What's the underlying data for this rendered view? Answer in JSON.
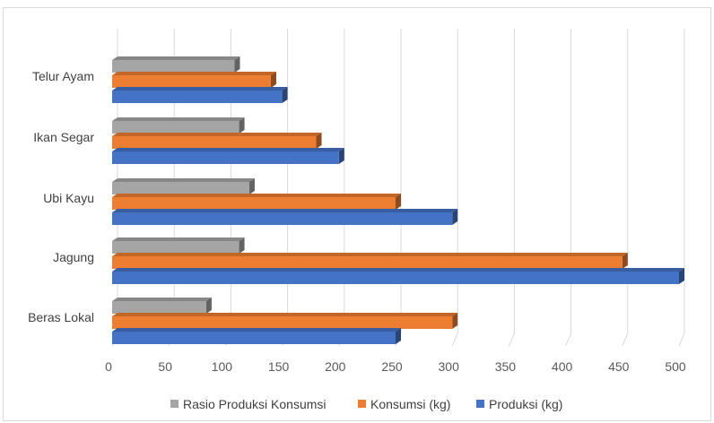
{
  "chart_data": {
    "type": "bar",
    "orientation": "horizontal",
    "style": "3d-clustered",
    "categories": [
      "Beras Lokal",
      "Jagung",
      "Ubi Kayu",
      "Ikan Segar",
      "Telur Ayam"
    ],
    "series": [
      {
        "name": "Rasio Produksi Konsumsi",
        "color": "#a5a5a5",
        "values": [
          83,
          112,
          121,
          112,
          108
        ]
      },
      {
        "name": "Konsumsi (kg)",
        "color": "#ed7d31",
        "values": [
          300,
          450,
          250,
          180,
          140
        ]
      },
      {
        "name": "Produksi (kg)",
        "color": "#4472c4",
        "values": [
          250,
          500,
          300,
          200,
          150
        ]
      }
    ],
    "x_ticks": [
      "0",
      "50",
      "100",
      "150",
      "200",
      "250",
      "300",
      "350",
      "400",
      "450",
      "500"
    ],
    "xlim": [
      0,
      500
    ],
    "grid": true,
    "legend_position": "bottom"
  }
}
